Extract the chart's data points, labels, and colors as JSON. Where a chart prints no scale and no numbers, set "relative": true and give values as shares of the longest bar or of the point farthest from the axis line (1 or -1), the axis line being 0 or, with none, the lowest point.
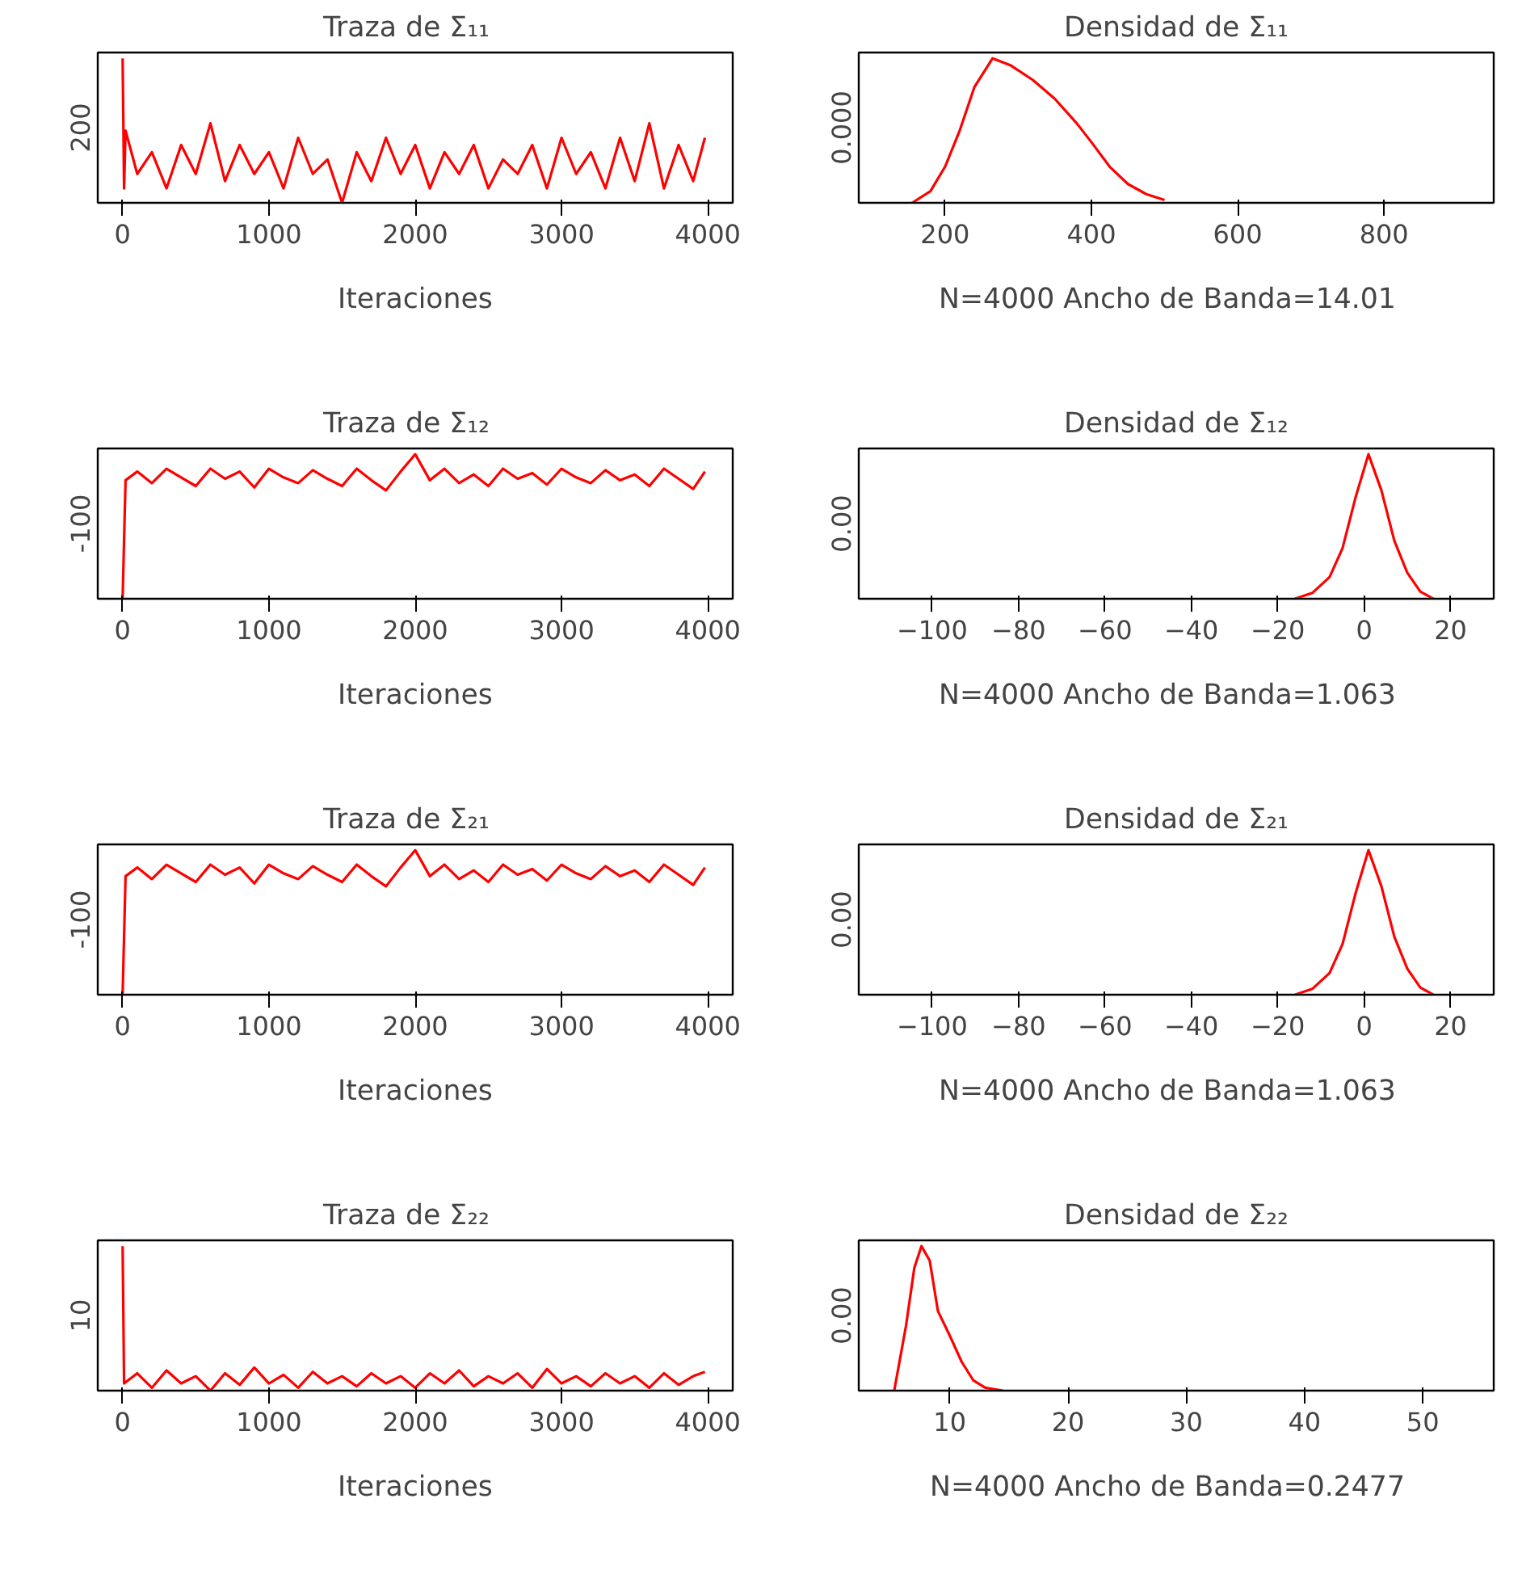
{
  "chart_data": [
    {
      "type": "line",
      "title": "Traza  de  Σ₁₁",
      "xlabel": "Iteraciones",
      "relative": true,
      "annotations": [
        "200"
      ],
      "xlim": [
        -170,
        4170
      ],
      "xticks": [
        0,
        1000,
        2000,
        3000,
        4000
      ],
      "color": "#ff0000",
      "x": [
        0,
        10,
        20,
        100,
        200,
        300,
        400,
        500,
        600,
        700,
        800,
        900,
        1000,
        1100,
        1200,
        1300,
        1400,
        1500,
        1600,
        1700,
        1800,
        1900,
        2000,
        2100,
        2200,
        2300,
        2400,
        2500,
        2600,
        2700,
        2800,
        2900,
        3000,
        3100,
        3200,
        3300,
        3400,
        3500,
        3600,
        3700,
        3800,
        3900,
        3980
      ],
      "values": [
        1.0,
        0.1,
        0.5,
        0.2,
        0.35,
        0.1,
        0.4,
        0.2,
        0.55,
        0.15,
        0.4,
        0.2,
        0.35,
        0.1,
        0.45,
        0.2,
        0.3,
        0.0,
        0.35,
        0.15,
        0.45,
        0.2,
        0.4,
        0.1,
        0.35,
        0.2,
        0.4,
        0.1,
        0.3,
        0.2,
        0.4,
        0.1,
        0.45,
        0.2,
        0.35,
        0.1,
        0.45,
        0.15,
        0.55,
        0.1,
        0.4,
        0.15,
        0.45
      ]
    },
    {
      "type": "line",
      "title": "Densidad de Σ₁₁",
      "xlabel": "N=4000   Ancho de Banda=14.01",
      "relative": true,
      "annotations": [
        "0.000"
      ],
      "xlim": [
        82,
        950
      ],
      "xticks": [
        200,
        400,
        600,
        800
      ],
      "color": "#ff0000",
      "x": [
        155,
        180,
        200,
        220,
        240,
        265,
        290,
        320,
        350,
        380,
        400,
        425,
        450,
        475,
        500
      ],
      "values": [
        0.0,
        0.08,
        0.25,
        0.5,
        0.8,
        1.0,
        0.95,
        0.85,
        0.72,
        0.55,
        0.42,
        0.25,
        0.13,
        0.06,
        0.02
      ]
    },
    {
      "type": "line",
      "title": "Traza  de  Σ₁₂",
      "xlabel": "Iteraciones",
      "relative": true,
      "annotations": [
        "-100"
      ],
      "xlim": [
        -170,
        4170
      ],
      "xticks": [
        0,
        1000,
        2000,
        3000,
        4000
      ],
      "color": "#ff0000",
      "x": [
        0,
        20,
        100,
        200,
        300,
        400,
        500,
        600,
        700,
        800,
        900,
        1000,
        1100,
        1200,
        1300,
        1400,
        1500,
        1600,
        1700,
        1800,
        1900,
        2000,
        2100,
        2200,
        2300,
        2400,
        2500,
        2600,
        2700,
        2800,
        2900,
        3000,
        3100,
        3200,
        3300,
        3400,
        3500,
        3600,
        3700,
        3800,
        3900,
        3980
      ],
      "values": [
        0.0,
        0.82,
        0.88,
        0.8,
        0.9,
        0.84,
        0.78,
        0.9,
        0.83,
        0.88,
        0.77,
        0.9,
        0.84,
        0.8,
        0.89,
        0.83,
        0.78,
        0.9,
        0.82,
        0.75,
        0.88,
        1.0,
        0.82,
        0.9,
        0.8,
        0.86,
        0.78,
        0.9,
        0.83,
        0.87,
        0.79,
        0.9,
        0.84,
        0.8,
        0.89,
        0.82,
        0.86,
        0.78,
        0.9,
        0.83,
        0.76,
        0.88
      ]
    },
    {
      "type": "line",
      "title": "Densidad de Σ₁₂",
      "xlabel": "N=4000   Ancho de Banda=1.063",
      "relative": true,
      "annotations": [
        "0.00"
      ],
      "xlim": [
        -117,
        30
      ],
      "xticks": [
        -100,
        -80,
        -60,
        -40,
        -20,
        0,
        20
      ],
      "color": "#ff0000",
      "x": [
        -16,
        -12,
        -8,
        -5,
        -2,
        1,
        4,
        7,
        10,
        13,
        16
      ],
      "values": [
        0.0,
        0.04,
        0.15,
        0.35,
        0.7,
        1.0,
        0.75,
        0.4,
        0.18,
        0.05,
        0.0
      ]
    },
    {
      "type": "line",
      "title": "Traza  de  Σ₂₁",
      "xlabel": "Iteraciones",
      "relative": true,
      "annotations": [
        "-100"
      ],
      "xlim": [
        -170,
        4170
      ],
      "xticks": [
        0,
        1000,
        2000,
        3000,
        4000
      ],
      "color": "#ff0000",
      "x": [
        0,
        20,
        100,
        200,
        300,
        400,
        500,
        600,
        700,
        800,
        900,
        1000,
        1100,
        1200,
        1300,
        1400,
        1500,
        1600,
        1700,
        1800,
        1900,
        2000,
        2100,
        2200,
        2300,
        2400,
        2500,
        2600,
        2700,
        2800,
        2900,
        3000,
        3100,
        3200,
        3300,
        3400,
        3500,
        3600,
        3700,
        3800,
        3900,
        3980
      ],
      "values": [
        0.0,
        0.82,
        0.88,
        0.8,
        0.9,
        0.84,
        0.78,
        0.9,
        0.83,
        0.88,
        0.77,
        0.9,
        0.84,
        0.8,
        0.89,
        0.83,
        0.78,
        0.9,
        0.82,
        0.75,
        0.88,
        1.0,
        0.82,
        0.9,
        0.8,
        0.86,
        0.78,
        0.9,
        0.83,
        0.87,
        0.79,
        0.9,
        0.84,
        0.8,
        0.89,
        0.82,
        0.86,
        0.78,
        0.9,
        0.83,
        0.76,
        0.88
      ]
    },
    {
      "type": "line",
      "title": "Densidad de Σ₂₁",
      "xlabel": "N=4000   Ancho de Banda=1.063",
      "relative": true,
      "annotations": [
        "0.00"
      ],
      "xlim": [
        -117,
        30
      ],
      "xticks": [
        -100,
        -80,
        -60,
        -40,
        -20,
        0,
        20
      ],
      "color": "#ff0000",
      "x": [
        -16,
        -12,
        -8,
        -5,
        -2,
        1,
        4,
        7,
        10,
        13,
        16
      ],
      "values": [
        0.0,
        0.04,
        0.15,
        0.35,
        0.7,
        1.0,
        0.75,
        0.4,
        0.18,
        0.05,
        0.0
      ]
    },
    {
      "type": "line",
      "title": "Traza  de  Σ₂₂",
      "xlabel": "Iteraciones",
      "relative": true,
      "annotations": [
        "10"
      ],
      "xlim": [
        -170,
        4170
      ],
      "xticks": [
        0,
        1000,
        2000,
        3000,
        4000
      ],
      "color": "#ff0000",
      "x": [
        0,
        10,
        100,
        200,
        300,
        400,
        500,
        600,
        700,
        800,
        900,
        1000,
        1100,
        1200,
        1300,
        1400,
        1500,
        1600,
        1700,
        1800,
        1900,
        2000,
        2100,
        2200,
        2300,
        2400,
        2500,
        2600,
        2700,
        2800,
        2900,
        3000,
        3100,
        3200,
        3300,
        3400,
        3500,
        3600,
        3700,
        3800,
        3900,
        3980
      ],
      "values": [
        1.0,
        0.05,
        0.12,
        0.02,
        0.14,
        0.05,
        0.1,
        0.0,
        0.12,
        0.04,
        0.16,
        0.05,
        0.11,
        0.02,
        0.13,
        0.05,
        0.1,
        0.03,
        0.12,
        0.05,
        0.1,
        0.02,
        0.12,
        0.05,
        0.14,
        0.03,
        0.1,
        0.05,
        0.12,
        0.02,
        0.15,
        0.05,
        0.1,
        0.03,
        0.12,
        0.05,
        0.1,
        0.02,
        0.12,
        0.04,
        0.1,
        0.13
      ]
    },
    {
      "type": "line",
      "title": "Densidad de Σ₂₂",
      "xlabel": "N=4000   Ancho de Banda=0.2477",
      "relative": true,
      "annotations": [
        "0.00"
      ],
      "xlim": [
        2.3,
        56
      ],
      "xticks": [
        10,
        20,
        30,
        40,
        50
      ],
      "color": "#ff0000",
      "x": [
        5.3,
        6.3,
        7.0,
        7.6,
        8.3,
        9.0,
        10.0,
        11.0,
        12.0,
        13.0,
        14.5
      ],
      "values": [
        0.0,
        0.45,
        0.85,
        1.0,
        0.9,
        0.55,
        0.38,
        0.2,
        0.07,
        0.02,
        0.0
      ]
    }
  ]
}
